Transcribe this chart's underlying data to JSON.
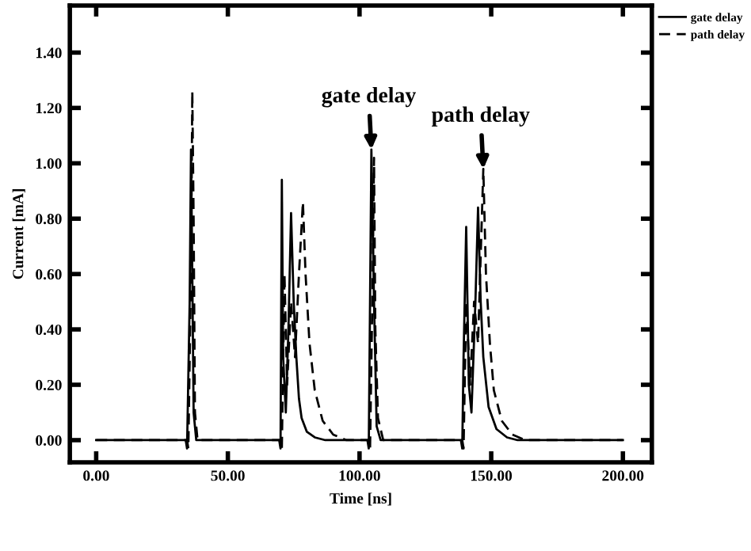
{
  "chart_data": {
    "type": "line",
    "xlabel": "Time [ns]",
    "ylabel": "Current [mA]",
    "series": [
      {
        "name": "gate delay",
        "color": "#000000",
        "line_style": "solid",
        "x": [
          0,
          34,
          34.5,
          35.5,
          36,
          36.5,
          37,
          38,
          69.5,
          70,
          70.5,
          71,
          72,
          73,
          74,
          75,
          76,
          77,
          78,
          80,
          83,
          87,
          103,
          103.5,
          104.5,
          105.5,
          106.5,
          108,
          138.5,
          139,
          139.5,
          140.5,
          141.5,
          142.5,
          144,
          145,
          146,
          147,
          149,
          152,
          156,
          160,
          200
        ],
        "values": [
          0,
          0,
          -0.03,
          0.5,
          1.05,
          0.6,
          0.1,
          0,
          0,
          -0.03,
          0.94,
          0.3,
          0.1,
          0.4,
          0.82,
          0.5,
          0.3,
          0.15,
          0.08,
          0.03,
          0.01,
          0,
          0,
          -0.03,
          1.05,
          0.5,
          0.05,
          0,
          0,
          -0.03,
          0.3,
          0.77,
          0.2,
          0.1,
          0.5,
          0.84,
          0.5,
          0.3,
          0.12,
          0.04,
          0.01,
          0,
          0
        ]
      },
      {
        "name": "path delay",
        "color": "#000000",
        "line_style": "dashed",
        "x": [
          0,
          34.5,
          35,
          36,
          36.5,
          37,
          37.5,
          38.5,
          70,
          70.5,
          71.5,
          72.5,
          74,
          75.5,
          77,
          78.5,
          79.5,
          81,
          83,
          86,
          90,
          95,
          103.5,
          104,
          105,
          105.5,
          106,
          107,
          109,
          139,
          139.5,
          140.5,
          142,
          143.5,
          145,
          147,
          148,
          149.5,
          151,
          154,
          158,
          163,
          200
        ],
        "values": [
          0,
          0,
          -0.03,
          0.6,
          1.26,
          0.8,
          0.1,
          0,
          0,
          -0.03,
          0.6,
          0.2,
          0.5,
          0.3,
          0.6,
          0.86,
          0.6,
          0.35,
          0.18,
          0.07,
          0.02,
          0,
          0,
          -0.03,
          0.6,
          1.02,
          0.4,
          0.08,
          0,
          0,
          -0.03,
          0.5,
          0.2,
          0.5,
          0.35,
          0.98,
          0.6,
          0.35,
          0.18,
          0.07,
          0.02,
          0,
          0
        ]
      }
    ],
    "annotations": [
      {
        "text": "gate delay",
        "x": 104.5,
        "y": 1.05
      },
      {
        "text": "path delay",
        "x": 147,
        "y": 0.98
      }
    ],
    "xlim": [
      -10,
      211
    ],
    "ylim": [
      -0.08,
      1.57
    ],
    "xticks": [
      {
        "value": 0,
        "label": "0.00"
      },
      {
        "value": 50,
        "label": "50.00"
      },
      {
        "value": 100,
        "label": "100.00"
      },
      {
        "value": 150,
        "label": "150.00"
      },
      {
        "value": 200,
        "label": "200.00"
      }
    ],
    "yticks": [
      {
        "value": 0,
        "label": "0.00"
      },
      {
        "value": 0.2,
        "label": "0.20"
      },
      {
        "value": 0.4,
        "label": "0.40"
      },
      {
        "value": 0.6,
        "label": "0.60"
      },
      {
        "value": 0.8,
        "label": "0.80"
      },
      {
        "value": 1.0,
        "label": "1.00"
      },
      {
        "value": 1.2,
        "label": "1.20"
      },
      {
        "value": 1.4,
        "label": "1.40"
      }
    ],
    "grid": false,
    "legend": "top right",
    "marker": "none"
  }
}
